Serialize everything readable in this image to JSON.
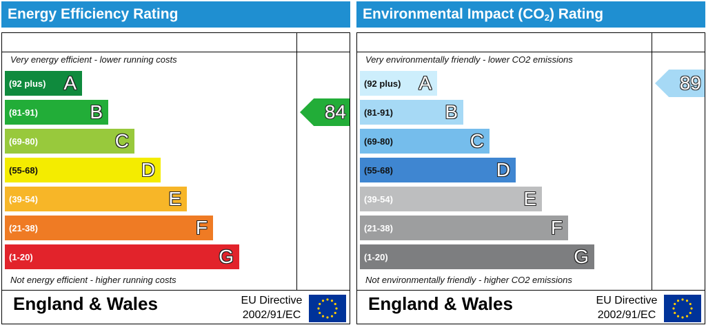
{
  "chart_data": [
    {
      "type": "bar",
      "title": "Energy Efficiency Rating",
      "top_caption": "Very energy efficient - lower running costs",
      "bottom_caption": "Not energy efficient - higher running costs",
      "categories": [
        "A",
        "B",
        "C",
        "D",
        "E",
        "F",
        "G"
      ],
      "ranges": [
        "(92 plus)",
        "(81-91)",
        "(69-80)",
        "(55-68)",
        "(39-54)",
        "(21-38)",
        "(1-20)"
      ],
      "colors": [
        "#0f8a3d",
        "#22ad38",
        "#98c93c",
        "#f4ec00",
        "#f7b628",
        "#ef7b24",
        "#e2232b"
      ],
      "current_rating": 84,
      "current_band": "B",
      "region": "England & Wales",
      "directive_line1": "EU Directive",
      "directive_line2": "2002/91/EC"
    },
    {
      "type": "bar",
      "title_main": "Environmental Impact (CO",
      "title_sub": "2",
      "title_end": ") Rating",
      "top_caption": "Very environmentally friendly - lower CO2 emissions",
      "bottom_caption": "Not environmentally friendly - higher CO2 emissions",
      "categories": [
        "A",
        "B",
        "C",
        "D",
        "E",
        "F",
        "G"
      ],
      "ranges": [
        "(92 plus)",
        "(81-91)",
        "(69-80)",
        "(55-68)",
        "(39-54)",
        "(21-38)",
        "(1-20)"
      ],
      "colors": [
        "#cdeefc",
        "#a6d9f5",
        "#75bdec",
        "#3f86d1",
        "#bdbebf",
        "#9d9e9f",
        "#7d7e80"
      ],
      "current_rating": 89,
      "current_band": "B",
      "region": "England & Wales",
      "directive_line1": "EU Directive",
      "directive_line2": "2002/91/EC"
    }
  ]
}
